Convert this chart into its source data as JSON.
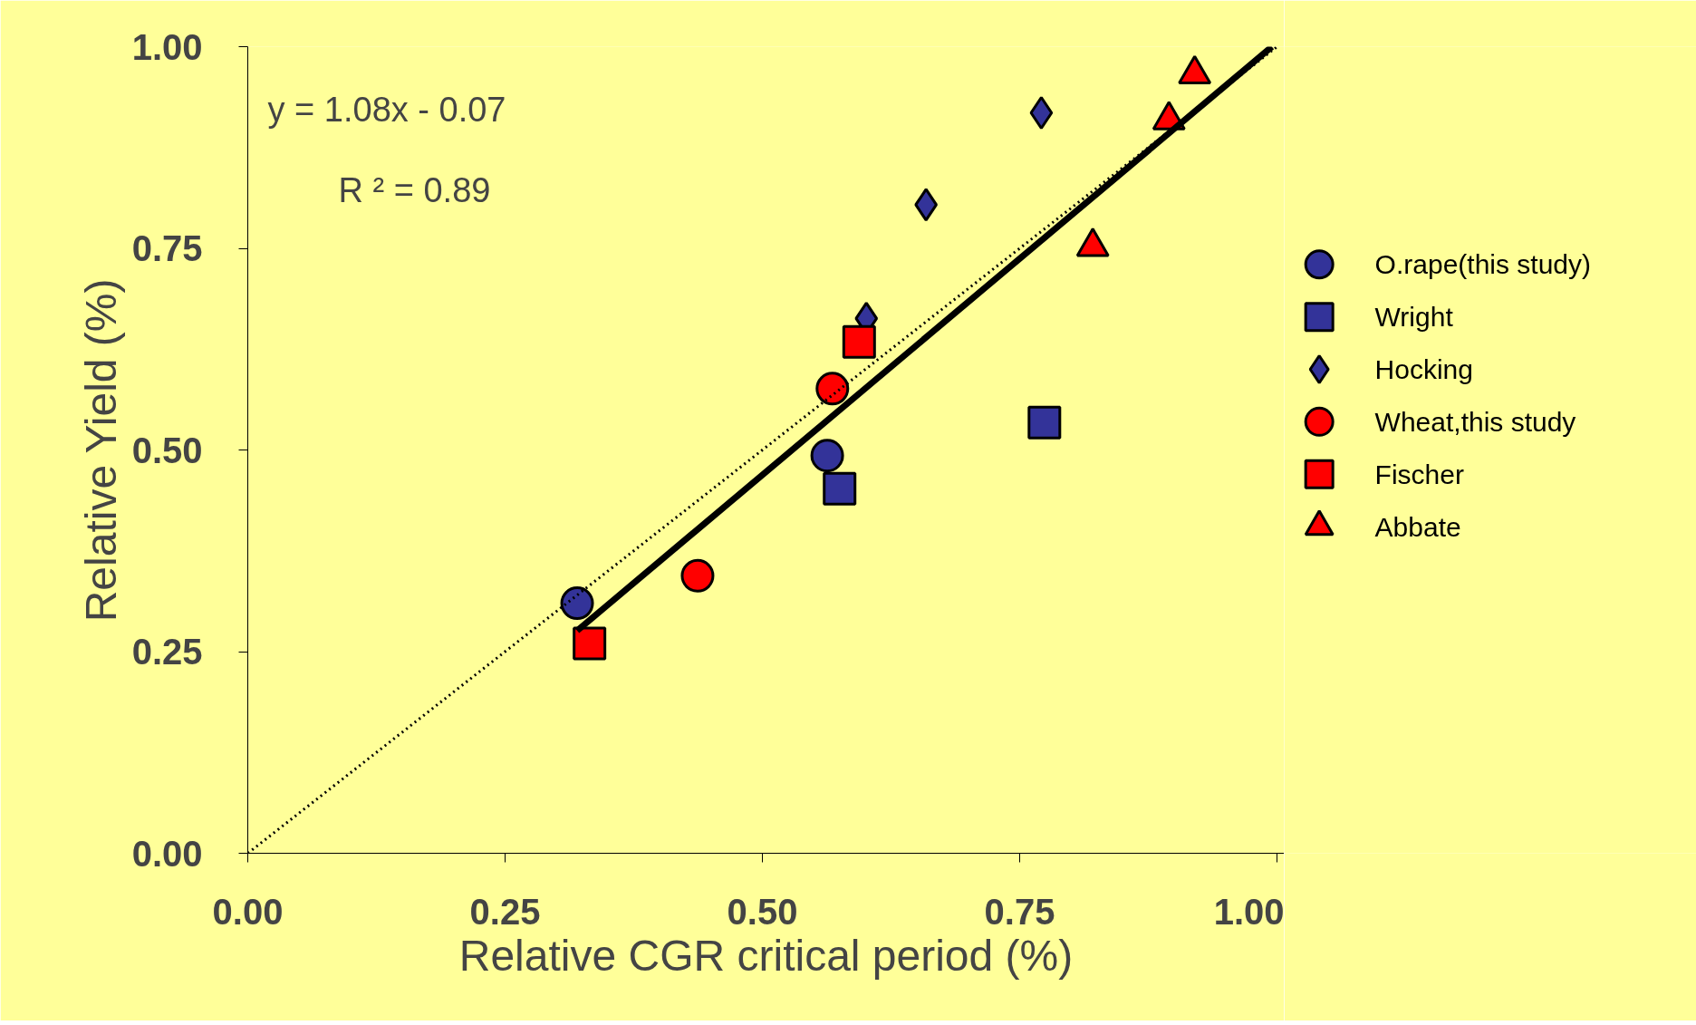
{
  "chart_data": {
    "type": "scatter",
    "xlabel": "Relative CGR critical period (%)",
    "ylabel": "Relative Yield (%)",
    "xlim": [
      0,
      1.007
    ],
    "ylim": [
      0,
      1
    ],
    "xticks": [
      {
        "value": 0,
        "label": "0.00"
      },
      {
        "value": 0.25,
        "label": "0.25"
      },
      {
        "value": 0.5,
        "label": "0.50"
      },
      {
        "value": 0.75,
        "label": "0.75"
      },
      {
        "value": 1,
        "label": "1.00"
      }
    ],
    "yticks": [
      {
        "value": 0,
        "label": "0.00"
      },
      {
        "value": 0.25,
        "label": "0.25"
      },
      {
        "value": 0.5,
        "label": "0.50"
      },
      {
        "value": 0.75,
        "label": "0.75"
      },
      {
        "value": 1,
        "label": "1.00"
      }
    ],
    "grid": false,
    "legend": "right",
    "annotations": [
      "y = 1.08x - 0.07",
      "R ² = 0.89"
    ],
    "series": [
      {
        "name": "O.rape(this study)",
        "color": "#333399",
        "marker": "circle",
        "x": [
          0.32,
          0.563
        ],
        "values": [
          0.31,
          0.493
        ]
      },
      {
        "name": "Wright",
        "color": "#333399",
        "marker": "square",
        "x": [
          0.575,
          0.774
        ],
        "values": [
          0.452,
          0.534
        ]
      },
      {
        "name": "Hocking",
        "color": "#333399",
        "marker": "diamond",
        "x": [
          0.601,
          0.659,
          0.771
        ],
        "values": [
          0.663,
          0.804,
          0.918
        ]
      },
      {
        "name": "Wheat,this study",
        "color": "#ff0000",
        "marker": "circle",
        "x": [
          0.437,
          0.568
        ],
        "values": [
          0.344,
          0.576
        ]
      },
      {
        "name": "Fischer",
        "color": "#ff0000",
        "marker": "square",
        "x": [
          0.332,
          0.594
        ],
        "values": [
          0.26,
          0.634
        ]
      },
      {
        "name": "Abbate",
        "color": "#ff0000",
        "marker": "triangle",
        "x": [
          0.821,
          0.895,
          0.92
        ],
        "values": [
          0.752,
          0.909,
          0.966
        ]
      },
      {
        "type": "line",
        "color": "#000000",
        "line_style": "solid",
        "x": [
          0.32,
          0.995
        ],
        "values": [
          0.276,
          1.0
        ]
      },
      {
        "type": "line",
        "color": "#000000",
        "line_style": "dotted",
        "x": [
          0,
          1.0
        ],
        "values": [
          0,
          1.0
        ]
      }
    ]
  }
}
